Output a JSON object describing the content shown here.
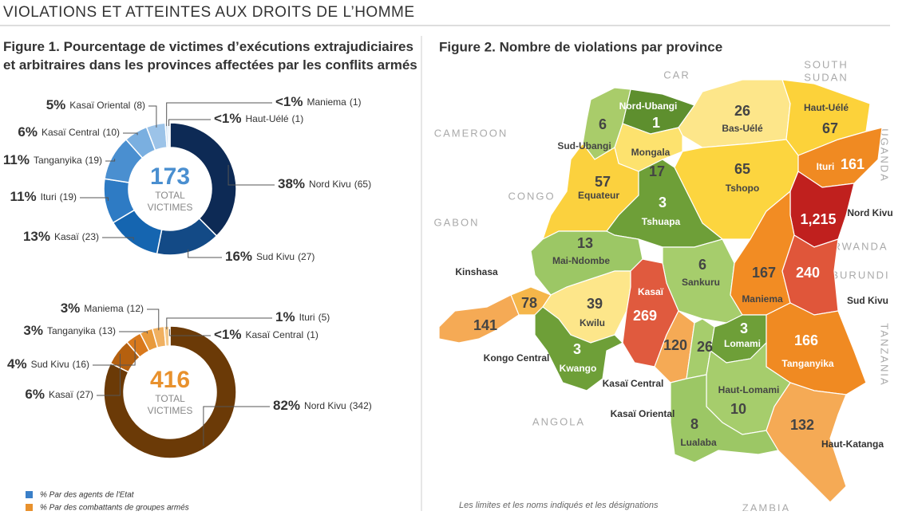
{
  "header": {
    "title": "VIOLATIONS ET ATTEINTES AUX DROITS DE L’HOMME"
  },
  "chart_data": [
    {
      "type": "donut",
      "title": "Figure 1. Pourcentage de victimes d’exécutions extrajudiciaires et arbitraires dans les provinces affectées par les conflits armés",
      "total": 173,
      "center_label": [
        "TOTAL",
        "VICTIMES"
      ],
      "accent_color": "#4a8fd0",
      "categories": [
        "Nord Kivu",
        "Sud Kivu",
        "Kasaï",
        "Ituri",
        "Tanganyika",
        "Kasaï Central",
        "Kasaï Oriental",
        "Maniema",
        "Haut-Uélé"
      ],
      "values": [
        65,
        27,
        23,
        19,
        19,
        10,
        8,
        1,
        1
      ],
      "value_labels": [
        "(65)",
        "(27)",
        "(23)",
        "(19)",
        "(19)",
        "(10)",
        "(8)",
        "(1)",
        "(1)"
      ],
      "percent_labels": [
        "38%",
        "16%",
        "13%",
        "11%",
        "11%",
        "6%",
        "5%",
        "<1%",
        "<1%"
      ],
      "colors": [
        "#0d2a55",
        "#134a86",
        "#1565b0",
        "#2e7bc4",
        "#4a8fd0",
        "#7aafe0",
        "#9cc3e8",
        "#c0daf2",
        "#dce9f7"
      ]
    },
    {
      "type": "donut",
      "total": 416,
      "center_label": [
        "TOTAL",
        "VICTIMES"
      ],
      "accent_color": "#e8912d",
      "categories": [
        "Nord Kivu",
        "Kasaï",
        "Sud Kivu",
        "Tanganyika",
        "Maniema",
        "Ituri",
        "Kasaï Central"
      ],
      "values": [
        342,
        27,
        16,
        13,
        12,
        5,
        1
      ],
      "value_labels": [
        "(342)",
        "(27)",
        "(16)",
        "(13)",
        "(12)",
        "(5)",
        "(1)"
      ],
      "percent_labels": [
        "82%",
        "6%",
        "4%",
        "3%",
        "3%",
        "1%",
        "<1%"
      ],
      "colors": [
        "#6b3a07",
        "#b5600f",
        "#d9791c",
        "#e89a3c",
        "#f0b060",
        "#f5c98a",
        "#fae0b8"
      ]
    },
    {
      "type": "map",
      "title": "Figure 2. Nombre de violations par province",
      "categories": [
        "Nord-Ubangi",
        "Sud-Ubangi",
        "Bas-Uélé",
        "Haut-Uélé",
        "Mongala",
        "Tshopo",
        "Ituri",
        "Equateur",
        "Tshuapa",
        "Nord Kivu",
        "Mai-Ndombe",
        "Sankuru",
        "Maniema",
        "Sud Kivu",
        "Kinshasa",
        "Kwilu",
        "Kasaï",
        "Kongo Central",
        "Kwango",
        "Kasaï Central",
        "Kasaï Oriental",
        "Lomami",
        "Tanganyika",
        "Haut-Lomami",
        "Lualaba",
        "Haut-Katanga"
      ],
      "values": [
        1,
        6,
        26,
        67,
        17,
        65,
        161,
        57,
        3,
        1215,
        13,
        6,
        167,
        240,
        78,
        39,
        269,
        141,
        3,
        120,
        26,
        3,
        166,
        10,
        8,
        132
      ],
      "value_labels": [
        "1",
        "6",
        "26",
        "67",
        "17",
        "65",
        "161",
        "57",
        "3",
        "1,215",
        "13",
        "6",
        "167",
        "240",
        "78",
        "39",
        "269",
        "141",
        "3",
        "120",
        "26",
        "3",
        "166",
        "10",
        "8",
        "132"
      ],
      "colors": [
        "#5e8f2e",
        "#a9cc6a",
        "#fde68a",
        "#fcd23a",
        "#fde26e",
        "#fcd53f",
        "#f08a22",
        "#fbd13e",
        "#6e9f38",
        "#c0201e",
        "#9cc765",
        "#a6cd6c",
        "#f28c23",
        "#e0563a",
        "#f5b64a",
        "#fde68a",
        "#e05a3e",
        "#f5aa55",
        "#6e9f38",
        "#f5aa55",
        "#a6cd6c",
        "#6e9f38",
        "#f08a22",
        "#a6cd6c",
        "#9cc765",
        "#f5aa55"
      ],
      "neighbors": [
        [
          "CAR"
        ],
        [
          "SOUTH",
          "SUDAN"
        ],
        [
          "CAMEROON"
        ],
        [
          "CONGO"
        ],
        [
          "GABON"
        ],
        [
          "UGANDA"
        ],
        [
          "RWANDA"
        ],
        [
          "BURUNDI"
        ],
        [
          "TANZANIA"
        ],
        [
          "ANGOLA"
        ],
        [
          "ZAMBIA"
        ]
      ],
      "note": "Les limites et les noms indiqués et les désignations"
    }
  ],
  "legend": [
    {
      "label": "% Par des agents de l'Etat",
      "color": "#3a7fc8"
    },
    {
      "label": "% Par des combattants de groupes armés",
      "color": "#e8912d"
    }
  ]
}
